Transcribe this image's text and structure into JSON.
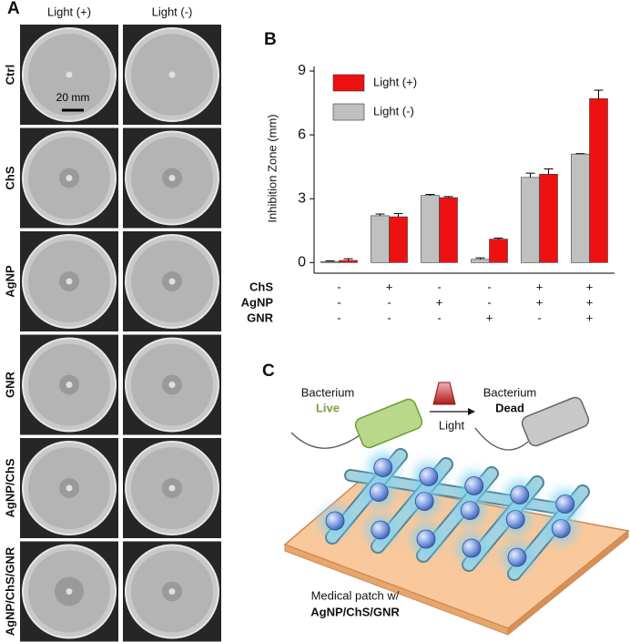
{
  "panel_a": {
    "label": "A",
    "columns": [
      "Light (+)",
      "Light (-)"
    ],
    "rows": [
      "Ctrl",
      "ChS",
      "AgNP",
      "GNR",
      "AgNP/ChS",
      "AgNP/ChS/GNR"
    ],
    "scale_bar": "20 mm"
  },
  "chart_data": {
    "type": "bar",
    "panel_label": "B",
    "ylabel": "Inhibition Zone (mm)",
    "categories": [
      null,
      null,
      null,
      null,
      null,
      null
    ],
    "series": [
      {
        "name": "Light (+)",
        "color": "#ee1111",
        "values": [
          0.1,
          2.15,
          3.05,
          1.1,
          4.15,
          7.7
        ],
        "errors": [
          0.08,
          0.15,
          0.05,
          0.05,
          0.25,
          0.4
        ]
      },
      {
        "name": "Light (-)",
        "color": "#c0c0c0",
        "values": [
          0.05,
          2.2,
          3.15,
          0.15,
          4.0,
          5.1
        ],
        "errors": [
          0.03,
          0.08,
          0.05,
          0.07,
          0.2,
          0.02
        ]
      }
    ],
    "ylim": [
      -0.5,
      9
    ],
    "yticks": [
      0,
      3,
      6,
      9
    ],
    "legend": "upper-left",
    "conditions": [
      {
        "name": "ChS",
        "signs": [
          "-",
          "+",
          "-",
          "-",
          "+",
          "+"
        ]
      },
      {
        "name": "AgNP",
        "signs": [
          "-",
          "-",
          "+",
          "-",
          "+",
          "+"
        ]
      },
      {
        "name": "GNR",
        "signs": [
          "-",
          "-",
          "-",
          "+",
          "-",
          "+"
        ]
      }
    ]
  },
  "panel_c": {
    "label": "C",
    "live_title": "Bacterium",
    "live_state": "Live",
    "light": "Light",
    "dead_title": "Bacterium",
    "dead_state": "Dead",
    "patch_line1": "Medical patch w/",
    "patch_line2": "AgNP/ChS/GNR"
  }
}
